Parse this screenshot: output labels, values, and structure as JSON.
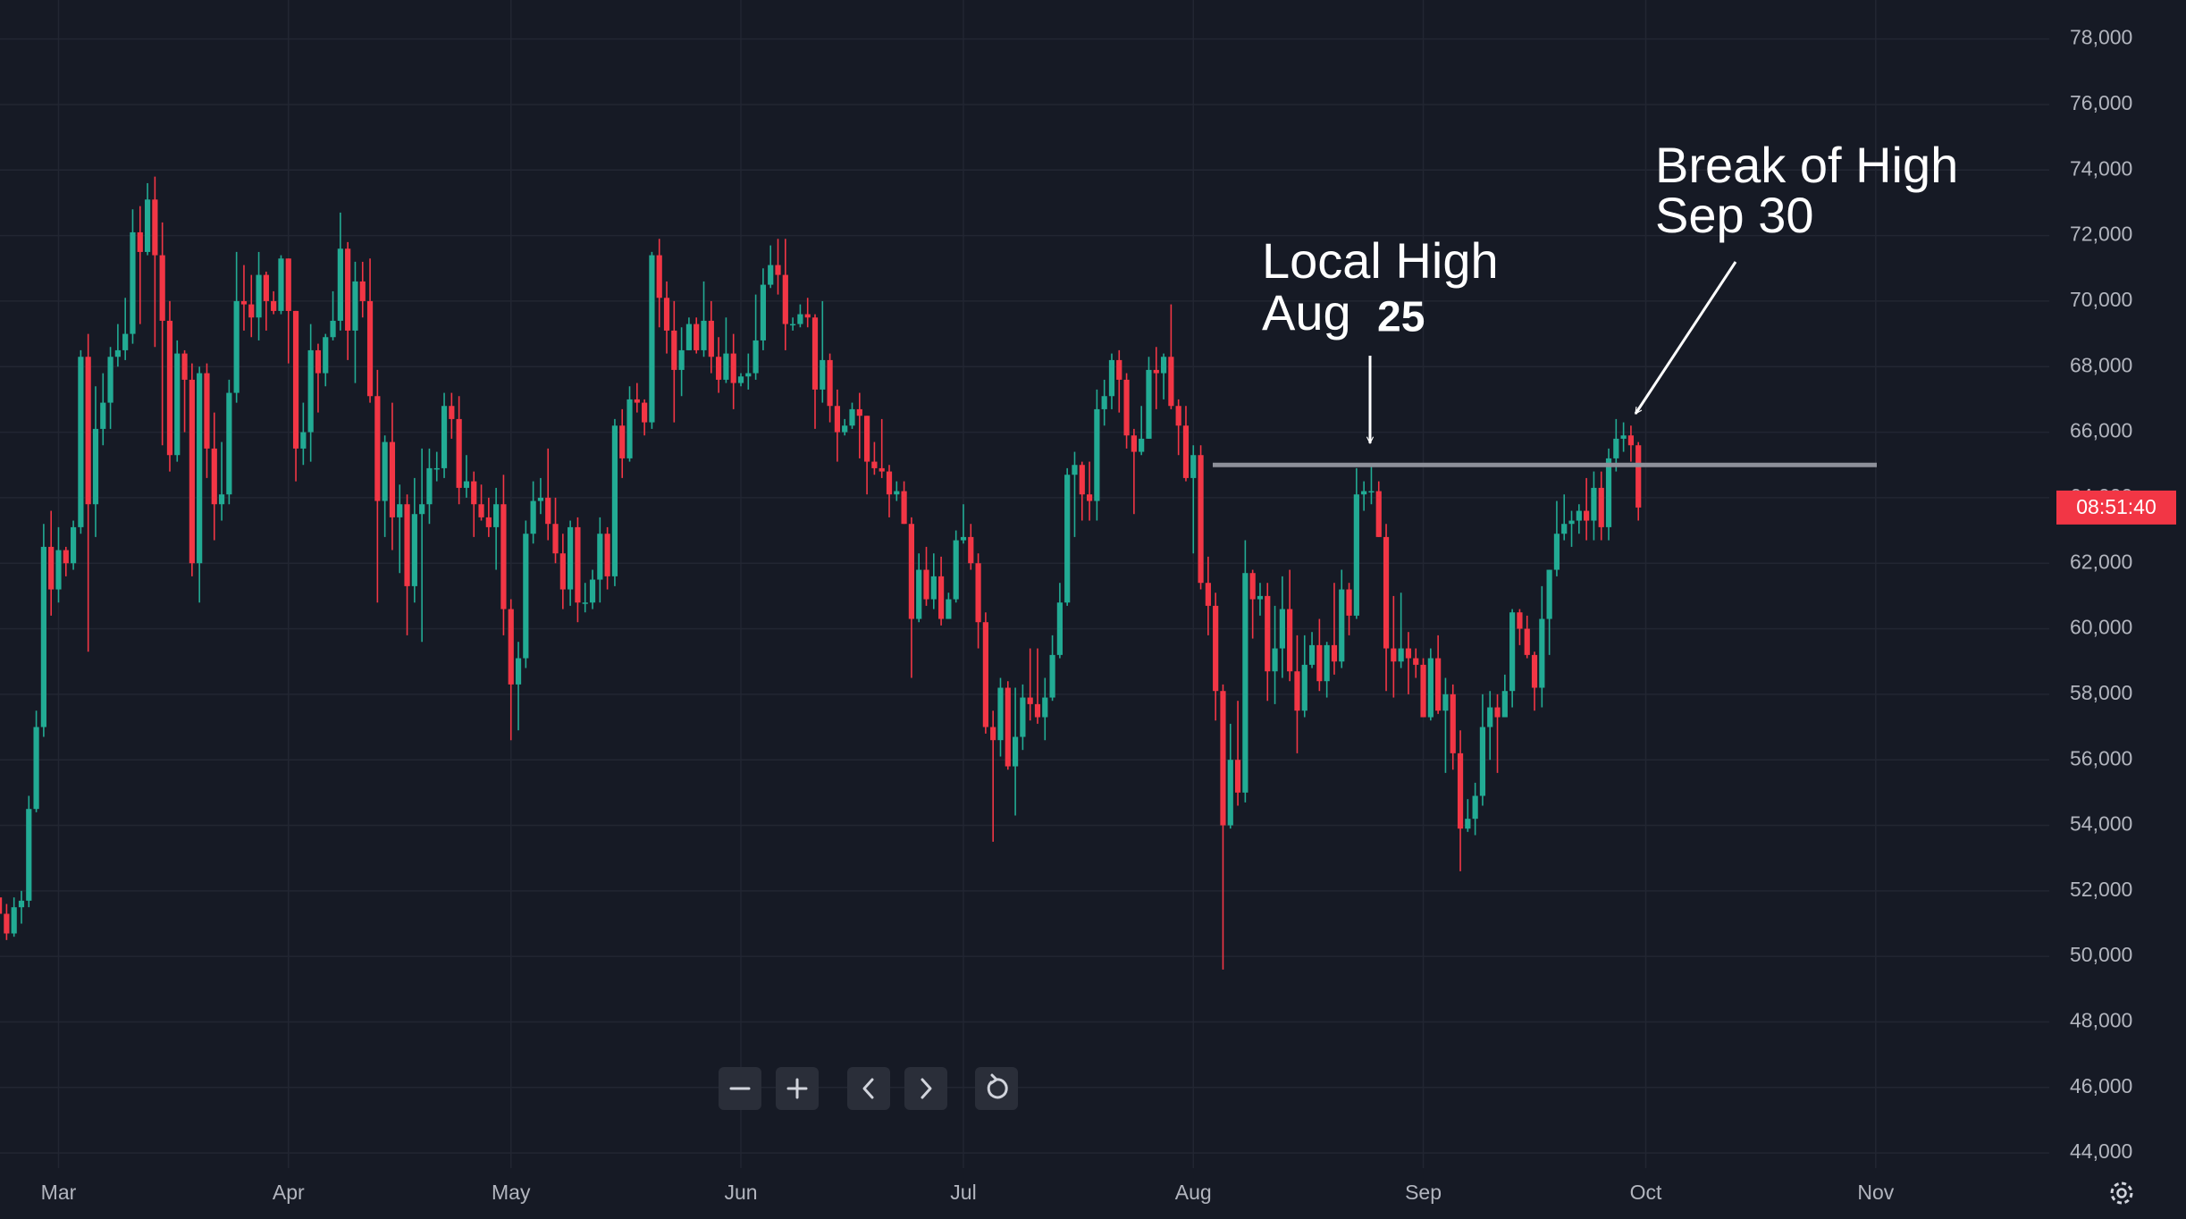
{
  "chart_data": {
    "type": "candlestick",
    "open": [
      51800,
      51300,
      50700,
      51500,
      51700,
      54500,
      57000,
      62500,
      61200,
      62400,
      62000,
      63100,
      68300,
      63800,
      66100,
      66900,
      68300,
      68500,
      69000,
      72100,
      71500,
      73100,
      71400,
      69400,
      65300,
      68400,
      67600,
      62000,
      67800,
      65500,
      63800,
      64100,
      67200,
      70000,
      69900,
      69500,
      70800,
      70000,
      69700,
      71300,
      69700,
      65500,
      66000,
      68500,
      67800,
      68900,
      69400,
      71600,
      69100,
      70600,
      70000,
      67100,
      63900,
      65700,
      63400,
      63800,
      61300,
      63500,
      63800,
      64900,
      64900,
      66800,
      66400,
      64300,
      64500,
      63800,
      63400,
      63100,
      63800,
      60600,
      58300,
      59100,
      62900,
      63900,
      64000,
      63200,
      62300,
      61200,
      63100,
      60800,
      60800,
      61500,
      62900,
      61600,
      66200,
      65200,
      67000,
      66900,
      66300,
      71400,
      70100,
      69100,
      67900,
      68500,
      69300,
      68500,
      69400,
      68300,
      67600,
      68400,
      67500,
      67700,
      67800,
      68800,
      70500,
      71100,
      70800,
      69300,
      69300,
      69600,
      69500,
      67300,
      68200,
      66800,
      66000,
      66200,
      66700,
      66500,
      65100,
      64900,
      64800,
      64100,
      64200,
      63200,
      60300,
      61800,
      60900,
      61600,
      60300,
      60900,
      62700,
      62800,
      62000,
      60200,
      57000,
      56600,
      58200,
      55800,
      56700,
      57900,
      57700,
      57300,
      57900,
      59200,
      60800,
      64700,
      65000,
      64100,
      63900,
      66700,
      67100,
      68200,
      67600,
      65900,
      65400,
      65800,
      67900,
      67800,
      68300,
      66800,
      66200,
      64600,
      65300,
      61400,
      60700,
      58100,
      54000,
      56000,
      55000,
      61700,
      60900,
      61000,
      58700,
      59400,
      60600,
      58700,
      57500,
      58900,
      59500,
      58400,
      59500,
      59000,
      61200,
      60400,
      64100,
      64200,
      64200,
      62800,
      59400,
      59000,
      59400,
      59100,
      58900,
      57300,
      59100,
      57500,
      58000,
      56200,
      53900,
      54200,
      54900,
      57000,
      57600,
      57300,
      58100,
      60500,
      60000,
      59200,
      58200,
      60300,
      61800,
      62900,
      63200,
      63300,
      63600,
      63300,
      64300,
      63100,
      65200,
      65800,
      65900,
      65600
    ],
    "high": [
      52100,
      51600,
      51800,
      52000,
      54900,
      57500,
      63200,
      63600,
      63100,
      62500,
      63300,
      68500,
      69000,
      67400,
      67800,
      68600,
      69300,
      70100,
      72800,
      72900,
      73600,
      73800,
      72400,
      70000,
      68800,
      68500,
      68100,
      68000,
      68100,
      66600,
      65700,
      67600,
      71500,
      71100,
      70800,
      71500,
      70900,
      70300,
      71400,
      71300,
      69700,
      66900,
      69300,
      68700,
      69000,
      70300,
      72700,
      71800,
      71200,
      71200,
      71300,
      67900,
      65900,
      66900,
      64400,
      64100,
      64600,
      65500,
      65500,
      65400,
      67200,
      67200,
      67100,
      65300,
      64800,
      64400,
      64000,
      64300,
      64700,
      60900,
      59600,
      63300,
      64500,
      64600,
      65500,
      64000,
      62900,
      63300,
      63400,
      61400,
      61800,
      63400,
      63100,
      66400,
      66700,
      67400,
      67500,
      67000,
      71500,
      71900,
      70600,
      70000,
      69200,
      69500,
      69500,
      70600,
      70000,
      68900,
      69500,
      69000,
      67800,
      68400,
      70200,
      71000,
      71700,
      71900,
      71900,
      69500,
      69900,
      70100,
      69600,
      70000,
      68400,
      67300,
      66400,
      66900,
      67200,
      66500,
      65700,
      66400,
      65000,
      64500,
      64500,
      63400,
      62300,
      62500,
      62300,
      62200,
      61100,
      63000,
      63800,
      63200,
      62300,
      60500,
      57500,
      58500,
      58400,
      58200,
      58300,
      59400,
      59400,
      58500,
      59800,
      61400,
      64900,
      65400,
      65100,
      65100,
      67300,
      67600,
      68400,
      68500,
      67800,
      66100,
      66800,
      68300,
      68600,
      68400,
      69900,
      67000,
      66800,
      65600,
      65600,
      62200,
      61100,
      58300,
      57100,
      57800,
      62700,
      61800,
      61400,
      61400,
      60700,
      61600,
      61800,
      59800,
      59800,
      59900,
      60300,
      59600,
      61400,
      61800,
      61400,
      64900,
      64500,
      65000,
      64500,
      63200,
      61000,
      61100,
      59900,
      59400,
      59100,
      59400,
      59800,
      58500,
      58300,
      56900,
      54800,
      55300,
      58000,
      58100,
      58000,
      58600,
      60600,
      60600,
      60400,
      59300,
      61300,
      61800,
      63900,
      64100,
      63600,
      63800,
      64600,
      64800,
      64800,
      65500,
      66400,
      66300,
      66200,
      65700
    ],
    "low": [
      50900,
      50500,
      50600,
      51000,
      51500,
      54400,
      56700,
      60400,
      60800,
      61600,
      61800,
      62900,
      59300,
      62800,
      65600,
      66100,
      68000,
      68200,
      68700,
      69300,
      71400,
      68600,
      65600,
      64800,
      65100,
      66000,
      61600,
      60800,
      64600,
      62700,
      63300,
      63800,
      66900,
      69100,
      68900,
      68800,
      69100,
      69600,
      69600,
      68100,
      64500,
      65000,
      65100,
      66600,
      67400,
      68800,
      69100,
      68200,
      67500,
      69500,
      66900,
      60800,
      62800,
      62400,
      61700,
      59800,
      60800,
      59600,
      63200,
      64500,
      64600,
      65800,
      63800,
      64000,
      62800,
      63300,
      62800,
      61800,
      59800,
      56600,
      56900,
      58800,
      62600,
      63500,
      62700,
      62000,
      60600,
      60700,
      60200,
      60500,
      60600,
      60800,
      61200,
      61300,
      64600,
      65100,
      66600,
      65900,
      66100,
      69200,
      68400,
      66300,
      67100,
      68500,
      68400,
      68300,
      67800,
      67200,
      67500,
      66700,
      67400,
      67300,
      67600,
      68500,
      70400,
      70200,
      68500,
      69100,
      69200,
      69200,
      66100,
      66900,
      66300,
      65100,
      65900,
      66100,
      65200,
      64100,
      64700,
      64600,
      63400,
      63900,
      63200,
      58500,
      60200,
      60700,
      60600,
      60100,
      60300,
      60800,
      62600,
      61800,
      59400,
      56800,
      53500,
      56100,
      55700,
      54300,
      56300,
      57200,
      57100,
      56600,
      57800,
      59100,
      60700,
      62800,
      63300,
      63300,
      63300,
      66200,
      66700,
      66600,
      65500,
      63500,
      65300,
      65800,
      66700,
      67000,
      66700,
      65300,
      64500,
      62300,
      61200,
      59800,
      57200,
      49600,
      53900,
      54600,
      54700,
      59700,
      60400,
      57800,
      57700,
      58500,
      58400,
      56200,
      57300,
      58800,
      58100,
      57900,
      58600,
      58800,
      59800,
      60300,
      63600,
      63800,
      62800,
      58100,
      57900,
      58800,
      58000,
      58500,
      57300,
      57200,
      57400,
      55600,
      55700,
      52600,
      53800,
      53700,
      54600,
      56000,
      55600,
      57300,
      57600,
      59500,
      59100,
      57500,
      57600,
      59200,
      61600,
      62700,
      62500,
      62900,
      62700,
      62700,
      62700,
      62700,
      64800,
      65400,
      65100,
      63300
    ],
    "close": [
      51300,
      50700,
      51500,
      51700,
      54500,
      57000,
      62500,
      61200,
      62400,
      62000,
      63100,
      68300,
      63800,
      66100,
      66900,
      68300,
      68500,
      69000,
      72100,
      71500,
      73100,
      71400,
      69400,
      65300,
      68400,
      67600,
      62000,
      67800,
      65500,
      63800,
      64100,
      67200,
      70000,
      69900,
      69500,
      70800,
      70000,
      69700,
      71300,
      69700,
      65500,
      66000,
      68500,
      67800,
      68900,
      69400,
      71600,
      69100,
      70600,
      70000,
      67100,
      63900,
      65700,
      63400,
      63800,
      61300,
      63500,
      63800,
      64900,
      64900,
      66800,
      66400,
      64300,
      64500,
      63800,
      63400,
      63100,
      63800,
      60600,
      58300,
      59100,
      62900,
      63900,
      64000,
      63200,
      62300,
      61200,
      63100,
      60800,
      60800,
      61500,
      62900,
      61600,
      66200,
      65200,
      67000,
      66900,
      66300,
      71400,
      70100,
      69100,
      67900,
      68500,
      69300,
      68500,
      69400,
      68300,
      67600,
      68400,
      67500,
      67700,
      67800,
      68800,
      70500,
      71100,
      70800,
      69300,
      69300,
      69600,
      69500,
      67300,
      68200,
      66800,
      66000,
      66200,
      66700,
      66500,
      65100,
      64900,
      64800,
      64100,
      64200,
      63200,
      60300,
      61800,
      60900,
      61600,
      60300,
      60900,
      62700,
      62800,
      62000,
      60200,
      57000,
      56600,
      58200,
      55800,
      56700,
      57900,
      57700,
      57300,
      57900,
      59200,
      60800,
      64700,
      65000,
      64100,
      63900,
      66700,
      67100,
      68200,
      67600,
      65900,
      65400,
      65800,
      67900,
      67800,
      68300,
      66800,
      66200,
      64600,
      65300,
      61400,
      60700,
      58100,
      54000,
      56000,
      55000,
      61700,
      60900,
      61000,
      58700,
      59400,
      60600,
      58700,
      57500,
      58900,
      59500,
      58400,
      59500,
      59000,
      61200,
      60400,
      64100,
      64200,
      64200,
      62800,
      59400,
      59000,
      59400,
      59100,
      58900,
      57300,
      59100,
      57500,
      58000,
      56200,
      53900,
      54200,
      54900,
      57000,
      57600,
      57300,
      58100,
      60500,
      60000,
      59200,
      58200,
      60300,
      61800,
      62900,
      63200,
      63300,
      63600,
      63300,
      64300,
      63100,
      65200,
      65800,
      65900,
      65600,
      63700
    ],
    "up_color": "#22ab94",
    "down_color": "#f23645",
    "xlim": [
      0.11,
      276.4
    ],
    "ylim": [
      43540,
      79190
    ],
    "xticks": [
      {
        "value": 8,
        "label": "Mar"
      },
      {
        "value": 39,
        "label": "Apr"
      },
      {
        "value": 69,
        "label": "May"
      },
      {
        "value": 100,
        "label": "Jun"
      },
      {
        "value": 130,
        "label": "Jul"
      },
      {
        "value": 161,
        "label": "Aug"
      },
      {
        "value": 192,
        "label": "Sep"
      },
      {
        "value": 222,
        "label": "Oct"
      },
      {
        "value": 253,
        "label": "Nov"
      }
    ],
    "yticks": [
      {
        "value": 44000,
        "label": "44,000"
      },
      {
        "value": 46000,
        "label": "46,000"
      },
      {
        "value": 48000,
        "label": "48,000"
      },
      {
        "value": 50000,
        "label": "50,000"
      },
      {
        "value": 52000,
        "label": "52,000"
      },
      {
        "value": 54000,
        "label": "54,000"
      },
      {
        "value": 56000,
        "label": "56,000"
      },
      {
        "value": 58000,
        "label": "58,000"
      },
      {
        "value": 60000,
        "label": "60,000"
      },
      {
        "value": 62000,
        "label": "62,000"
      },
      {
        "value": 64000,
        "label": "64,000"
      },
      {
        "value": 66000,
        "label": "66,000"
      },
      {
        "value": 68000,
        "label": "68,000"
      },
      {
        "value": 70000,
        "label": "70,000"
      },
      {
        "value": 72000,
        "label": "72,000"
      },
      {
        "value": 74000,
        "label": "74,000"
      },
      {
        "value": 76000,
        "label": "76,000"
      },
      {
        "value": 78000,
        "label": "78,000"
      }
    ],
    "grid": true,
    "level": 65000,
    "level_color": "#8d909a",
    "countdown": "08:51:40",
    "annotations": [
      {
        "lines": [
          "Local High",
          "Aug"
        ],
        "emphasis": "25"
      },
      {
        "lines": [
          "Break of High",
          "Sep 30"
        ]
      }
    ]
  }
}
